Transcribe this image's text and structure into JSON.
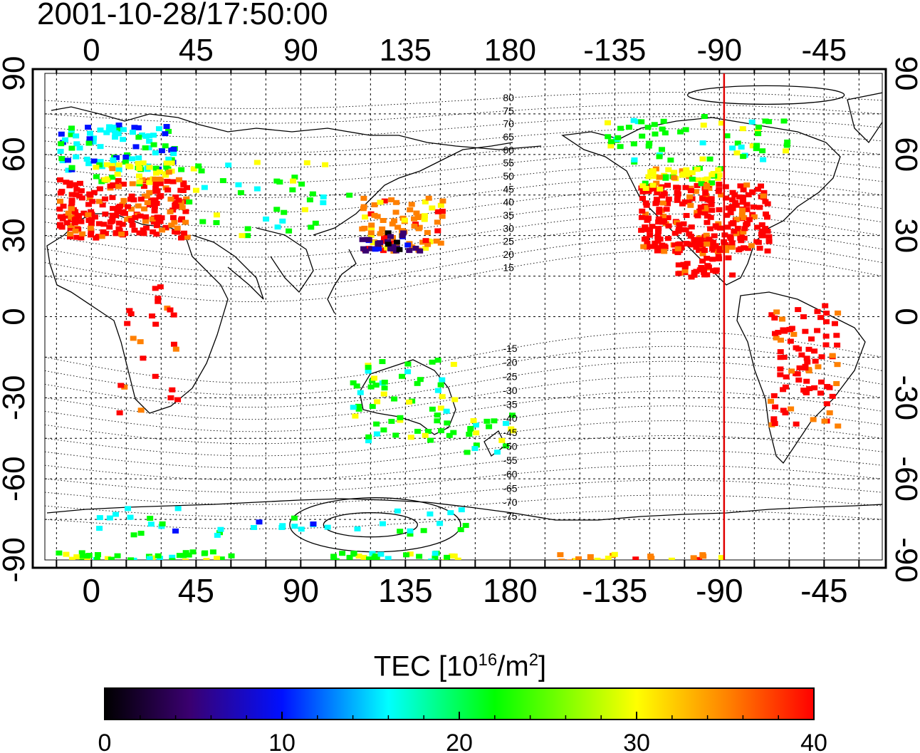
{
  "timestamp": "2001-10-28/17:50:00",
  "map": {
    "x_ticks_labels": [
      "0",
      "45",
      "90",
      "135",
      "180",
      "-135",
      "-90",
      "-45"
    ],
    "y_ticks_labels": [
      "90",
      "60",
      "30",
      "0",
      "-30",
      "-60",
      "-90"
    ],
    "mag_lat_labels": [
      "80",
      "75",
      "70",
      "65",
      "60",
      "55",
      "50",
      "45",
      "40",
      "35",
      "30",
      "25",
      "20",
      "15",
      "-15",
      "-20",
      "-25",
      "-30",
      "-35",
      "-40",
      "-45",
      "-50",
      "-55",
      "-60",
      "-65",
      "-70",
      "-75"
    ],
    "marker_longitude": -88,
    "marker_color": "#e00000",
    "map_lon_range": [
      -20,
      340
    ],
    "map_lat_range": [
      -90,
      90
    ]
  },
  "colorbar": {
    "title_prefix": "TEC  [10",
    "title_exp1": "16",
    "title_mid": "/m",
    "title_exp2": "2",
    "title_suffix": "]",
    "ticks": [
      "0",
      "10",
      "20",
      "30",
      "40"
    ],
    "range": [
      0,
      40
    ],
    "stops": [
      "#000000",
      "#3a0070",
      "#0010ff",
      "#00ffff",
      "#00ff00",
      "#ffff00",
      "#ff8000",
      "#ff0000"
    ]
  }
}
